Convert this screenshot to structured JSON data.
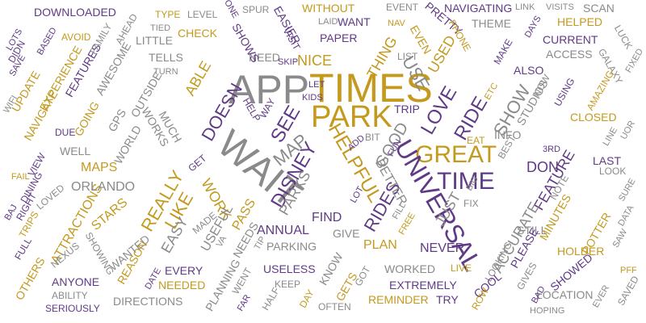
{
  "colors": {
    "purple": "#5f3a86",
    "gold": "#c39a1e",
    "gray": "#8a8a8a"
  },
  "words": [
    {
      "text": "APP",
      "color": "gray"
    },
    {
      "text": "TIMES",
      "color": "gold"
    },
    {
      "text": "WAIT",
      "color": "gray"
    },
    {
      "text": "PARK",
      "color": "gold"
    },
    {
      "text": "GREAT",
      "color": "gold"
    },
    {
      "text": "UNIVERSAL",
      "color": "purple"
    },
    {
      "text": "TIME",
      "color": "purple"
    },
    {
      "text": "DISNEY",
      "color": "purple"
    },
    {
      "text": "HELPFUL",
      "color": "gold"
    },
    {
      "text": "LOVE",
      "color": "purple"
    },
    {
      "text": "RIDES",
      "color": "purple"
    },
    {
      "text": "RIDE",
      "color": "purple"
    },
    {
      "text": "SHOW",
      "color": "gray"
    },
    {
      "text": "SEE",
      "color": "purple"
    },
    {
      "text": "NICE",
      "color": "gold"
    },
    {
      "text": "USE",
      "color": "gray"
    },
    {
      "text": "USED",
      "color": "gold"
    },
    {
      "text": "THING",
      "color": "gold"
    },
    {
      "text": "MAP",
      "color": "gray"
    },
    {
      "text": "DOESN",
      "color": "purple"
    },
    {
      "text": "ABLE",
      "color": "gold"
    },
    {
      "text": "REALLY",
      "color": "gold"
    },
    {
      "text": "LIKE",
      "color": "gold"
    },
    {
      "text": "WORK",
      "color": "gold"
    },
    {
      "text": "PARKS",
      "color": "gray"
    },
    {
      "text": "GOOD",
      "color": "gray"
    },
    {
      "text": "BETTER",
      "color": "gray"
    },
    {
      "text": "JUST",
      "color": "gray"
    },
    {
      "text": "DON",
      "color": "purple"
    },
    {
      "text": "FEATURE",
      "color": "purple"
    },
    {
      "text": "ACCURATE",
      "color": "gray"
    },
    {
      "text": "FIND",
      "color": "purple"
    },
    {
      "text": "PLAN",
      "color": "gold"
    },
    {
      "text": "NEVER",
      "color": "purple"
    },
    {
      "text": "ANNUAL",
      "color": "purple"
    },
    {
      "text": "PASS",
      "color": "gold"
    },
    {
      "text": "EASY",
      "color": "gray"
    },
    {
      "text": "USEFUL",
      "color": "gray"
    },
    {
      "text": "ATTRACTIONS",
      "color": "gold"
    },
    {
      "text": "STARS",
      "color": "gold"
    },
    {
      "text": "ORLANDO",
      "color": "gray"
    },
    {
      "text": "MAPS",
      "color": "gold"
    },
    {
      "text": "WELL",
      "color": "gray"
    },
    {
      "text": "WORLD",
      "color": "gray"
    },
    {
      "text": "GPS",
      "color": "gray"
    },
    {
      "text": "WORKS",
      "color": "gray"
    },
    {
      "text": "MUCH",
      "color": "gray"
    },
    {
      "text": "GOING",
      "color": "gold"
    },
    {
      "text": "NAVIGATE",
      "color": "gold"
    },
    {
      "text": "UPDATE",
      "color": "gold"
    },
    {
      "text": "EXPERIENCE",
      "color": "gold"
    },
    {
      "text": "FEATURES",
      "color": "purple"
    },
    {
      "text": "AWESOME",
      "color": "gray"
    },
    {
      "text": "LITTLE",
      "color": "gray"
    },
    {
      "text": "OUTSIDE",
      "color": "gray"
    },
    {
      "text": "TELLS",
      "color": "gray"
    },
    {
      "text": "CHECK",
      "color": "gold"
    },
    {
      "text": "DOWNLOADED",
      "color": "purple"
    },
    {
      "text": "WITHOUT",
      "color": "gold"
    },
    {
      "text": "WANT",
      "color": "purple"
    },
    {
      "text": "PAPER",
      "color": "purple"
    },
    {
      "text": "NEED",
      "color": "gray"
    },
    {
      "text": "SHOWS",
      "color": "purple"
    },
    {
      "text": "EASIER",
      "color": "purple"
    },
    {
      "text": "VISIT",
      "color": "purple"
    },
    {
      "text": "EVEN",
      "color": "gold"
    },
    {
      "text": "EVENT",
      "color": "gray"
    },
    {
      "text": "NAVIGATING",
      "color": "purple"
    },
    {
      "text": "PRETTY",
      "color": "purple"
    },
    {
      "text": "PHONE",
      "color": "gold"
    },
    {
      "text": "THEME",
      "color": "gray"
    },
    {
      "text": "HELPED",
      "color": "gold"
    },
    {
      "text": "SCAN",
      "color": "gray"
    },
    {
      "text": "CURRENT",
      "color": "purple"
    },
    {
      "text": "ACCESS",
      "color": "gray"
    },
    {
      "text": "ALSO",
      "color": "purple"
    },
    {
      "text": "INFO",
      "color": "gray"
    },
    {
      "text": "STUDIOS",
      "color": "gray"
    },
    {
      "text": "CLOSED",
      "color": "gold"
    },
    {
      "text": "LAST",
      "color": "purple"
    },
    {
      "text": "LOOK",
      "color": "gray"
    },
    {
      "text": "MINUTES",
      "color": "gold"
    },
    {
      "text": "POTTER",
      "color": "gold"
    },
    {
      "text": "HOLDER",
      "color": "gold"
    },
    {
      "text": "STILL",
      "color": "gray"
    },
    {
      "text": "NOTE",
      "color": "gray"
    },
    {
      "text": "PLEASE",
      "color": "purple"
    },
    {
      "text": "LOOKING",
      "color": "gray"
    },
    {
      "text": "GIVE",
      "color": "gray"
    },
    {
      "text": "PARKING",
      "color": "gray"
    },
    {
      "text": "WORKED",
      "color": "gray"
    },
    {
      "text": "EXTREMELY",
      "color": "purple"
    },
    {
      "text": "USELESS",
      "color": "purple"
    },
    {
      "text": "REMINDER",
      "color": "gold"
    },
    {
      "text": "TRY",
      "color": "purple"
    },
    {
      "text": "LOCATION",
      "color": "gray"
    },
    {
      "text": "OFTEN",
      "color": "gray"
    },
    {
      "text": "DIRECTIONS",
      "color": "gray"
    },
    {
      "text": "EVERY",
      "color": "purple"
    },
    {
      "text": "NEEDED",
      "color": "gold"
    },
    {
      "text": "ANYONE",
      "color": "purple"
    },
    {
      "text": "ABILITY",
      "color": "gray"
    },
    {
      "text": "SERIOUSLY",
      "color": "purple"
    },
    {
      "text": "OTHERS",
      "color": "gold"
    },
    {
      "text": "REASON",
      "color": "gold"
    },
    {
      "text": "WANTED",
      "color": "gray"
    },
    {
      "text": "SHOWING",
      "color": "gray"
    },
    {
      "text": "NEXUS",
      "color": "gray"
    },
    {
      "text": "PLANNING",
      "color": "gray"
    },
    {
      "text": "WENT",
      "color": "gray"
    },
    {
      "text": "NEEDS",
      "color": "gray"
    },
    {
      "text": "MADE",
      "color": "gray"
    },
    {
      "text": "KEEP",
      "color": "gray"
    },
    {
      "text": "HALF",
      "color": "gray"
    },
    {
      "text": "GETS",
      "color": "gold"
    },
    {
      "text": "KNOW",
      "color": "gray"
    },
    {
      "text": "GOT",
      "color": "gray"
    },
    {
      "text": "COOL",
      "color": "purple"
    },
    {
      "text": "LIVE",
      "color": "gold"
    },
    {
      "text": "SHOWED",
      "color": "purple"
    },
    {
      "text": "SAVED",
      "color": "gray"
    },
    {
      "text": "GIVES",
      "color": "gray"
    },
    {
      "text": "FIX",
      "color": "gray"
    },
    {
      "text": "TRIP",
      "color": "purple"
    },
    {
      "text": "BIT",
      "color": "gray"
    },
    {
      "text": "LIST",
      "color": "gray"
    },
    {
      "text": "EAT",
      "color": "gold"
    },
    {
      "text": "BEST",
      "color": "gray"
    },
    {
      "text": "GALAXY",
      "color": "gray"
    },
    {
      "text": "AMAZING",
      "color": "gold"
    },
    {
      "text": "USING",
      "color": "purple"
    },
    {
      "text": "NOW",
      "color": "gray"
    },
    {
      "text": "MAKE",
      "color": "purple"
    },
    {
      "text": "LUCK",
      "color": "gray"
    },
    {
      "text": "VISITS",
      "color": "gray"
    },
    {
      "text": "LINK",
      "color": "gray"
    },
    {
      "text": "DAYS",
      "color": "purple"
    },
    {
      "text": "DIDN",
      "color": "purple"
    },
    {
      "text": "FAMILY",
      "color": "gray"
    },
    {
      "text": "AHEAD",
      "color": "gray"
    },
    {
      "text": "TYPE",
      "color": "gold"
    },
    {
      "text": "LEVEL",
      "color": "gray"
    },
    {
      "text": "SPUR",
      "color": "gray"
    },
    {
      "text": "ONE",
      "color": "purple"
    },
    {
      "text": "AVOID",
      "color": "gold"
    },
    {
      "text": "BASED",
      "color": "purple"
    },
    {
      "text": "LOTS",
      "color": "purple"
    },
    {
      "text": "SAVE",
      "color": "purple"
    },
    {
      "text": "WIFI",
      "color": "gray"
    },
    {
      "text": "TURN",
      "color": "gray"
    },
    {
      "text": "SKIP",
      "color": "purple"
    },
    {
      "text": "LET",
      "color": "purple"
    },
    {
      "text": "KIDS",
      "color": "purple"
    },
    {
      "text": "WAY",
      "color": "purple"
    },
    {
      "text": "HELP",
      "color": "purple"
    },
    {
      "text": "ADD",
      "color": "purple"
    },
    {
      "text": "FUN",
      "color": "purple"
    },
    {
      "text": "LOT",
      "color": "purple"
    },
    {
      "text": "DUE",
      "color": "purple"
    },
    {
      "text": "VIEW",
      "color": "purple"
    },
    {
      "text": "DINING",
      "color": "purple"
    },
    {
      "text": "LOVED",
      "color": "gray"
    },
    {
      "text": "RIGHT",
      "color": "purple"
    },
    {
      "text": "TRIPS",
      "color": "gold"
    },
    {
      "text": "FULL",
      "color": "purple"
    },
    {
      "text": "FAIL",
      "color": "gold"
    },
    {
      "text": "BAD",
      "color": "purple"
    },
    {
      "text": "DATE",
      "color": "purple"
    },
    {
      "text": "FAR",
      "color": "purple"
    },
    {
      "text": "DAY",
      "color": "gold"
    },
    {
      "text": "ROW",
      "color": "gold"
    },
    {
      "text": "HOPING",
      "color": "gray"
    },
    {
      "text": "EVER",
      "color": "gray"
    },
    {
      "text": "PFF",
      "color": "gold"
    },
    {
      "text": "DATA",
      "color": "gray"
    },
    {
      "text": "SAW",
      "color": "gray"
    },
    {
      "text": "SURE",
      "color": "gray"
    },
    {
      "text": "3RD",
      "color": "purple"
    },
    {
      "text": "FREE",
      "color": "gold"
    },
    {
      "text": "BIG",
      "color": "gray"
    },
    {
      "text": "ETC",
      "color": "gold"
    },
    {
      "text": "TIP",
      "color": "gray"
    },
    {
      "text": "FILL",
      "color": "gray"
    },
    {
      "text": "NAV",
      "color": "gold"
    },
    {
      "text": "LAID",
      "color": "gray"
    },
    {
      "text": "TIED",
      "color": "gray"
    },
    {
      "text": "GET",
      "color": "purple"
    },
    {
      "text": "FIXED",
      "color": "gray"
    },
    {
      "text": "LINE",
      "color": "gray"
    },
    {
      "text": "UOR",
      "color": "gray"
    },
    {
      "text": "VA",
      "color": "gray"
    },
    {
      "text": "BAJ",
      "color": "purple"
    }
  ]
}
